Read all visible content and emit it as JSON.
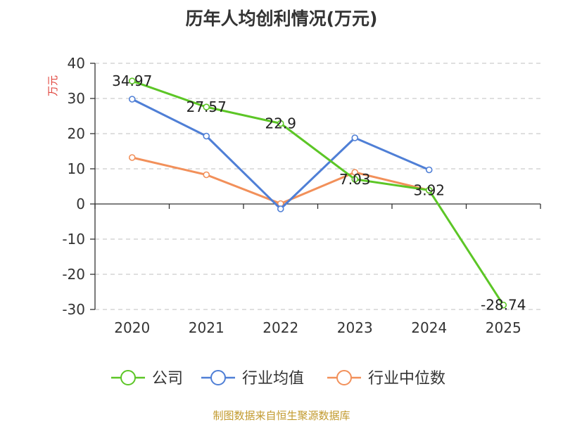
{
  "chart_data": {
    "type": "line",
    "title": "历年人均创利情况(万元)",
    "ylabel": "万元",
    "categories": [
      "2020",
      "2021",
      "2022",
      "2023",
      "2024",
      "2025"
    ],
    "ylim": [
      -30,
      40
    ],
    "yticks": [
      40,
      30,
      20,
      10,
      0,
      -10,
      -20,
      -30
    ],
    "grid": true,
    "legend_position": "bottom",
    "series": [
      {
        "name": "公司",
        "color": "#5cc626",
        "values": [
          34.97,
          27.57,
          22.9,
          7.03,
          3.92,
          -28.74
        ],
        "labels": [
          "34.97",
          "27.57",
          "22.9",
          "7.03",
          "3.92",
          "-28.74"
        ]
      },
      {
        "name": "行业均值",
        "color": "#4f7fd6",
        "values": [
          29.8,
          19.3,
          -1.4,
          18.8,
          9.7,
          null
        ]
      },
      {
        "name": "行业中位数",
        "color": "#f2905a",
        "values": [
          13.2,
          8.3,
          0.1,
          9.0,
          3.9,
          null
        ]
      }
    ]
  },
  "source": "制图数据来自恒生聚源数据库"
}
